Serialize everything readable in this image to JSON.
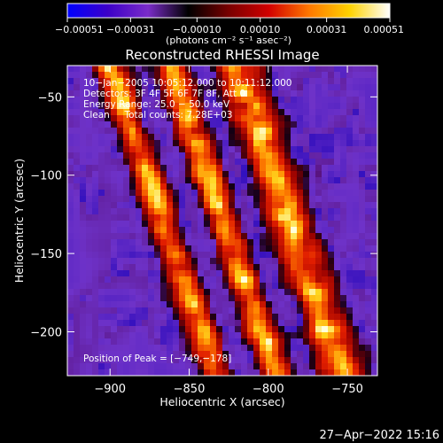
{
  "chart_data": {
    "type": "heatmap",
    "title": "Reconstructed RHESSI Image",
    "xlabel": "Heliocentric X (arcsec)",
    "ylabel": "Heliocentric Y (arcsec)",
    "xlim": [
      -927,
      -731
    ],
    "ylim": [
      -228,
      -30
    ],
    "x_ticks": [
      -900,
      -850,
      -800,
      -750
    ],
    "x_tick_labels": [
      "−900",
      "−850",
      "−800",
      "−750"
    ],
    "y_ticks": [
      -50,
      -100,
      -150,
      -200
    ],
    "y_tick_labels": [
      "−50",
      "−100",
      "−150",
      "−200"
    ],
    "colorbar": {
      "range": [
        -0.00051,
        0.00051
      ],
      "ticks": [
        -0.00051,
        -0.00031,
        -0.0001,
        0.0001,
        0.00031,
        0.00051
      ],
      "tick_labels": [
        "−0.00051",
        "−0.00031",
        "−0.00010",
        "0.00010",
        "0.00031",
        "0.00051"
      ],
      "unit_label": "(photons cm⁻² s⁻¹ asec⁻²)",
      "colors": [
        "#0000ff",
        "#3c00c8",
        "#7a2cc8",
        "#000000",
        "#780000",
        "#d20000",
        "#ff7800",
        "#ffd200",
        "#ffffff"
      ]
    },
    "annotations": [
      "10−Jan−2005 10:05:12.000 to 10:11:12.000",
      "Detectors: 3F 4F 5F 6F 7F 8F, Att 0",
      "Energy Range: 25.0 − 50.0 keV",
      "Clean     Total counts: 7.28E+03"
    ],
    "peak_label": "Position of Peak = [−749,−178]",
    "peak": [
      -749,
      -178
    ],
    "bands": [
      {
        "slope": 0.34,
        "x_at_top": -900,
        "width": 7,
        "amp": 0.95
      },
      {
        "slope": 0.34,
        "x_at_top": -862,
        "width": 7,
        "amp": 1.0
      },
      {
        "slope": 0.34,
        "x_at_top": -820,
        "width": 10,
        "amp": 1.0
      }
    ]
  },
  "footer": {
    "timestamp": "27−Apr−2022 15:16"
  }
}
